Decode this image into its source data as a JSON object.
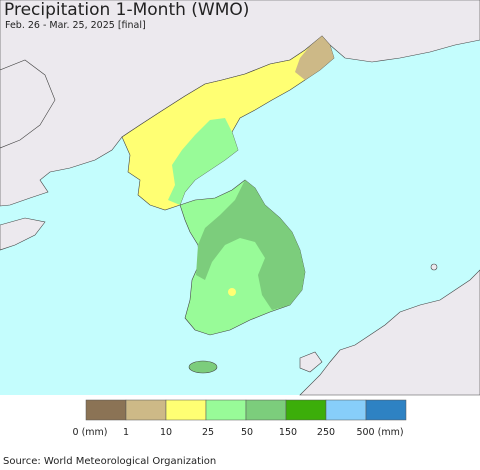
{
  "map": {
    "title": "Precipitation 1-Month (WMO)",
    "subtitle": "Feb. 26 - Mar. 25, 2025 [final]",
    "source": "Source: World Meteorological Organization"
  },
  "legend": {
    "labels": [
      "0 (mm)",
      "1",
      "10",
      "25",
      "50",
      "150",
      "250",
      "500 (mm)"
    ],
    "colors": [
      "#8b7355",
      "#cdb987",
      "#ffff73",
      "#98fb98",
      "#7ccd7c",
      "#3cae0a",
      "#87cefa",
      "#2e82c3"
    ]
  },
  "colors": {
    "sea": "#c4fdfd",
    "foreign_land": "#ece9ee",
    "border": "#333333"
  }
}
